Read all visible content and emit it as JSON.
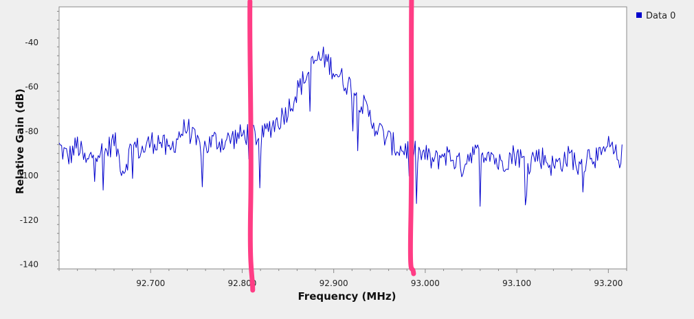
{
  "colors": {
    "background": "#efefef",
    "plot_background": "#ffffff",
    "series": "#0000cc",
    "annotation": "#ff3d85",
    "axis": "#888888"
  },
  "chart_data": {
    "type": "line",
    "title": "",
    "xlabel": "Frequency (MHz)",
    "ylabel": "Relative Gain (dB)",
    "xlim": [
      92.6,
      93.22
    ],
    "ylim": [
      -142,
      -24
    ],
    "xticks": [
      92.7,
      92.8,
      92.9,
      93.0,
      93.1,
      93.2
    ],
    "xtick_labels": [
      "92.700",
      "92.800",
      "92.900",
      "93.000",
      "93.100",
      "93.200"
    ],
    "yticks": [
      -40,
      -60,
      -80,
      -100,
      -120,
      -140
    ],
    "ytick_labels": [
      "-40",
      "-60",
      "-80",
      "-100",
      "-120",
      "-140"
    ],
    "grid": false,
    "legend": {
      "placement": "top-right",
      "entries": [
        "Data 0"
      ]
    },
    "annotations": [
      {
        "type": "vertical-marker",
        "x": 92.81
      },
      {
        "type": "vertical-marker",
        "x": 92.985
      }
    ],
    "series": [
      {
        "name": "Data 0",
        "x": [
          92.6,
          92.61,
          92.62,
          92.63,
          92.64,
          92.65,
          92.66,
          92.67,
          92.68,
          92.69,
          92.7,
          92.71,
          92.72,
          92.73,
          92.74,
          92.75,
          92.76,
          92.77,
          92.78,
          92.79,
          92.8,
          92.81,
          92.82,
          92.83,
          92.84,
          92.85,
          92.86,
          92.87,
          92.88,
          92.89,
          92.9,
          92.91,
          92.92,
          92.93,
          92.94,
          92.95,
          92.96,
          92.97,
          92.98,
          92.99,
          93.0,
          93.01,
          93.02,
          93.03,
          93.04,
          93.05,
          93.06,
          93.07,
          93.08,
          93.09,
          93.1,
          93.11,
          93.12,
          93.13,
          93.14,
          93.15,
          93.16,
          93.17,
          93.18,
          93.19,
          93.2,
          93.21,
          93.215
        ],
        "values": [
          -87,
          -92,
          -86,
          -95,
          -88,
          -90,
          -84,
          -98,
          -86,
          -89,
          -85,
          -84,
          -90,
          -82,
          -78,
          -86,
          -87,
          -84,
          -85,
          -83,
          -82,
          -80,
          -84,
          -78,
          -75,
          -70,
          -62,
          -55,
          -48,
          -47,
          -52,
          -57,
          -60,
          -67,
          -74,
          -80,
          -84,
          -88,
          -88,
          -90,
          -91,
          -94,
          -90,
          -92,
          -96,
          -89,
          -91,
          -88,
          -95,
          -92,
          -90,
          -95,
          -91,
          -92,
          -96,
          -93,
          -91,
          -98,
          -89,
          -93,
          -87,
          -92,
          -91
        ]
      }
    ]
  }
}
